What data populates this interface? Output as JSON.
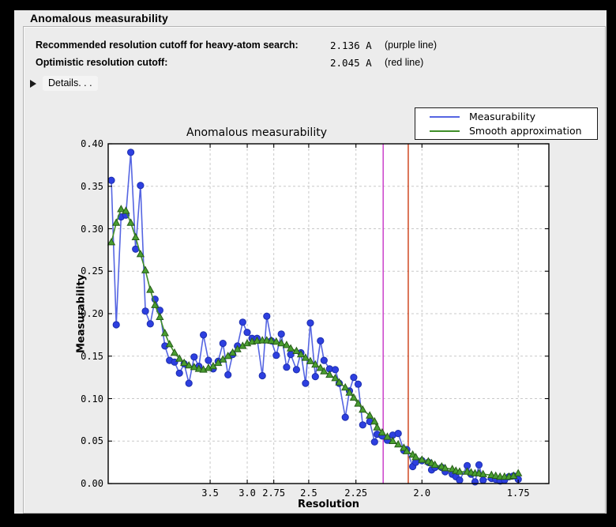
{
  "window": {
    "title": "Anomalous measurability"
  },
  "summary": {
    "rows": [
      {
        "label": "Recommended resolution cutoff for heavy-atom search:",
        "value": "2.136 A",
        "note": "(purple line)"
      },
      {
        "label": "Optimistic resolution cutoff:",
        "value": "2.045 A",
        "note": "(red line)"
      }
    ],
    "details_label": "Details. . .",
    "disclosure_icon": "right-pointing-triangle"
  },
  "chart_data": {
    "type": "line",
    "title": "Anomalous measurability",
    "xlabel": "Resolution",
    "ylabel": "Measurability",
    "grid": true,
    "legend_position": "top-right, above axes",
    "x_axis": {
      "unit": "Angstrom",
      "scale": "linear in 1/d^2 (resolution decreases to the right)",
      "tick_labels": [
        "3.5",
        "3.0",
        "2.75",
        "2.5",
        "2.25",
        "2.0",
        "1.75"
      ],
      "tick_values": [
        3.5,
        3.0,
        2.75,
        2.5,
        2.25,
        2.0,
        1.75
      ]
    },
    "y_axis": {
      "tick_labels": [
        "0.00",
        "0.05",
        "0.10",
        "0.15",
        "0.20",
        "0.25",
        "0.30",
        "0.35",
        "0.40"
      ],
      "range": [
        0.0,
        0.4
      ]
    },
    "resolution_A": [
      17.88,
      11.97,
      9.6,
      8.25,
      7.34,
      6.68,
      6.17,
      5.76,
      5.42,
      5.14,
      4.9,
      4.68,
      4.5,
      4.33,
      4.18,
      4.05,
      3.93,
      3.81,
      3.71,
      3.62,
      3.53,
      3.45,
      3.37,
      3.3,
      3.23,
      3.17,
      3.11,
      3.05,
      3.0,
      2.95,
      2.9,
      2.85,
      2.81,
      2.77,
      2.73,
      2.69,
      2.65,
      2.62,
      2.58,
      2.55,
      2.52,
      2.49,
      2.46,
      2.43,
      2.41,
      2.38,
      2.35,
      2.33,
      2.3,
      2.28,
      2.26,
      2.24,
      2.22,
      2.19,
      2.17,
      2.16,
      2.14,
      2.12,
      2.1,
      2.08,
      2.06,
      2.05,
      2.03,
      2.02,
      2.0,
      1.98,
      1.97,
      1.96,
      1.94,
      1.93,
      1.91,
      1.9,
      1.89,
      1.87,
      1.86,
      1.85,
      1.84,
      1.83,
      1.81,
      1.8,
      1.79,
      1.78,
      1.77,
      1.76,
      1.75
    ],
    "series": [
      {
        "name": "Measurability",
        "marker": "circle",
        "line_color": "#5565e2",
        "marker_fill": "#2d3fe0",
        "marker_edge": "#1d2fae",
        "values": [
          0.357,
          0.187,
          0.314,
          0.316,
          0.39,
          0.276,
          0.351,
          0.203,
          0.188,
          0.217,
          0.204,
          0.162,
          0.145,
          0.143,
          0.13,
          0.141,
          0.118,
          0.149,
          0.138,
          0.175,
          0.145,
          0.135,
          0.144,
          0.165,
          0.128,
          0.152,
          0.162,
          0.19,
          0.178,
          0.171,
          0.171,
          0.127,
          0.197,
          0.168,
          0.151,
          0.176,
          0.137,
          0.152,
          0.134,
          0.154,
          0.118,
          0.189,
          0.126,
          0.168,
          0.145,
          0.135,
          0.134,
          0.118,
          0.078,
          0.109,
          0.125,
          0.117,
          0.069,
          0.073,
          0.049,
          0.058,
          0.056,
          0.051,
          0.057,
          0.059,
          0.039,
          0.04,
          0.02,
          0.025,
          0.027,
          0.025,
          0.016,
          0.019,
          0.019,
          0.014,
          0.011,
          0.008,
          0.004,
          0.021,
          0.011,
          0.002,
          0.022,
          0.004,
          0.006,
          0.005,
          0.003,
          0.004,
          0.008,
          0.009,
          0.005
        ]
      },
      {
        "name": "Smooth approximation",
        "marker": "triangle",
        "line_color": "#3f8e28",
        "marker_fill": "#4a9e30",
        "marker_edge": "#265c18",
        "values": [
          0.284,
          0.307,
          0.323,
          0.321,
          0.307,
          0.29,
          0.27,
          0.251,
          0.228,
          0.21,
          0.196,
          0.177,
          0.164,
          0.154,
          0.147,
          0.142,
          0.139,
          0.137,
          0.135,
          0.134,
          0.136,
          0.138,
          0.142,
          0.146,
          0.15,
          0.154,
          0.158,
          0.162,
          0.165,
          0.167,
          0.168,
          0.1685,
          0.1685,
          0.168,
          0.167,
          0.165,
          0.163,
          0.159,
          0.156,
          0.152,
          0.148,
          0.144,
          0.14,
          0.136,
          0.132,
          0.128,
          0.124,
          0.119,
          0.113,
          0.107,
          0.101,
          0.094,
          0.087,
          0.08,
          0.073,
          0.066,
          0.06,
          0.055,
          0.05,
          0.046,
          0.042,
          0.038,
          0.034,
          0.031,
          0.028,
          0.026,
          0.024,
          0.022,
          0.02,
          0.018,
          0.017,
          0.015,
          0.014,
          0.014,
          0.013,
          0.012,
          0.012,
          0.011,
          0.01,
          0.009,
          0.008,
          0.008,
          0.008,
          0.009,
          0.012
        ]
      }
    ],
    "vlines": [
      {
        "resolution": 2.136,
        "color": "#c633c6",
        "name": "purple line"
      },
      {
        "resolution": 2.045,
        "color": "#cc3a12",
        "name": "red line"
      }
    ],
    "colors": {
      "plot_bg": "#ffffff",
      "grid": "#c9c9c9",
      "frame": "#000000",
      "window_bg": "#ececec"
    }
  }
}
